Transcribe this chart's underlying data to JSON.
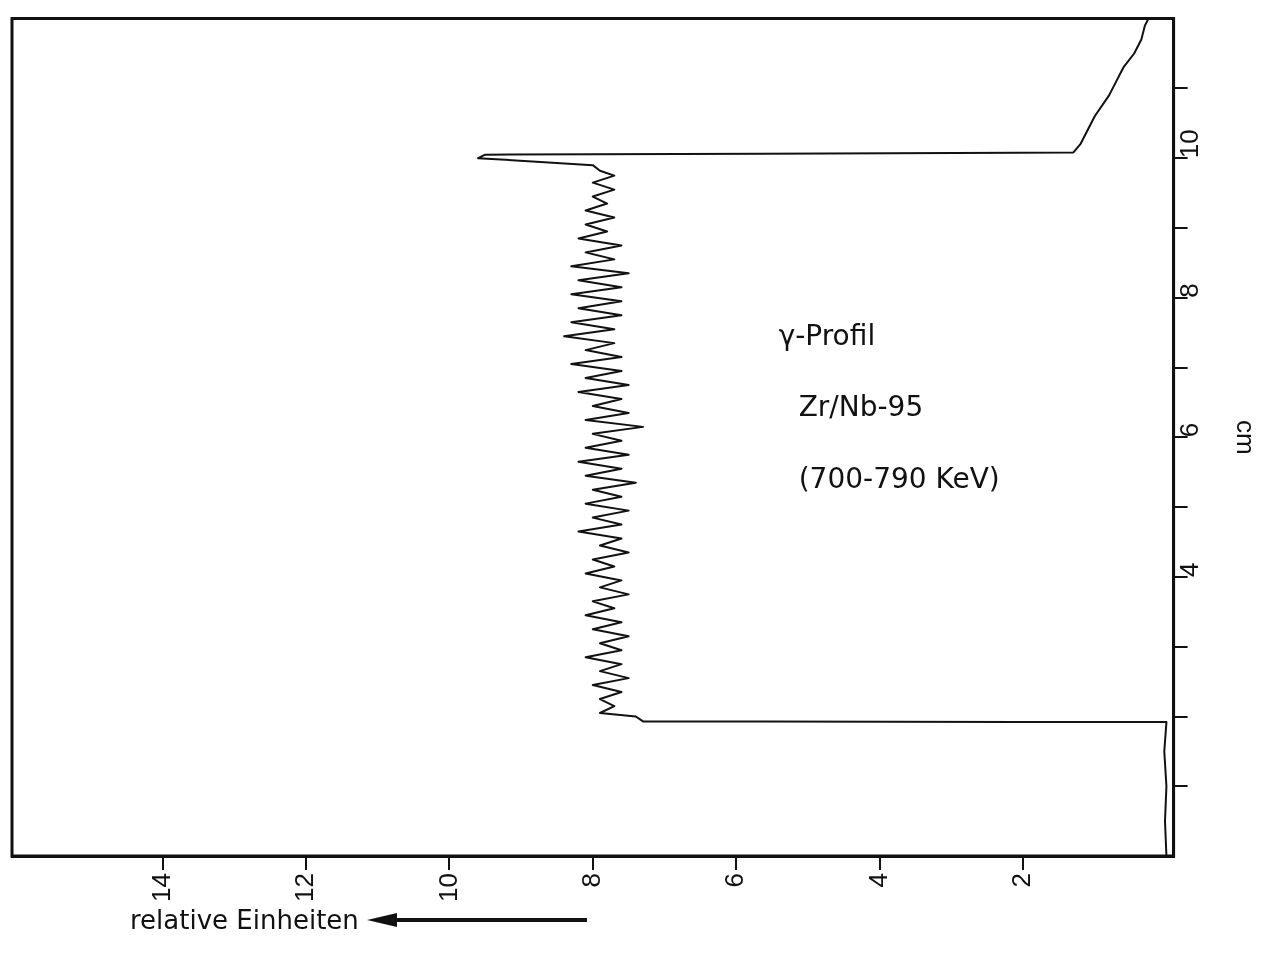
{
  "chart_data": {
    "type": "line",
    "xlabel": "relative Einheiten",
    "ylabel": "cm",
    "annotations": [
      "γ-Profil",
      "Zr/Nb-95",
      "(700-790 KeV)"
    ],
    "x": [
      0.0,
      0.02,
      0.0,
      0.03,
      0.0,
      7.3,
      7.4,
      7.9,
      7.7,
      7.9,
      7.6,
      8.0,
      7.5,
      7.9,
      7.6,
      8.1,
      7.6,
      7.9,
      7.5,
      8.0,
      7.6,
      8.1,
      7.7,
      8.0,
      7.5,
      7.9,
      7.6,
      8.1,
      7.7,
      8.0,
      7.5,
      7.9,
      7.6,
      8.2,
      7.6,
      8.0,
      7.5,
      8.1,
      7.6,
      8.0,
      7.4,
      8.1,
      7.6,
      8.2,
      7.5,
      8.1,
      7.6,
      8.0,
      7.3,
      8.1,
      7.5,
      8.0,
      7.6,
      8.2,
      7.5,
      8.1,
      7.6,
      8.3,
      7.6,
      8.1,
      7.7,
      8.4,
      7.7,
      8.3,
      7.6,
      8.2,
      7.6,
      8.3,
      7.6,
      8.2,
      7.5,
      8.3,
      7.7,
      8.1,
      7.6,
      8.2,
      7.8,
      8.1,
      7.7,
      8.1,
      7.8,
      8.0,
      7.7,
      8.0,
      7.7,
      7.9,
      8.0,
      9.6,
      9.5,
      1.3,
      1.2,
      1.1,
      1.0,
      0.8,
      0.7,
      0.6,
      0.45,
      0.35,
      0.3,
      0.25
    ],
    "series": [
      {
        "color": "#111111",
        "values": [
          0.0,
          0.5,
          1.0,
          1.5,
          1.92,
          1.93,
          2.0,
          2.05,
          2.15,
          2.25,
          2.35,
          2.45,
          2.55,
          2.65,
          2.75,
          2.85,
          2.95,
          3.05,
          3.15,
          3.25,
          3.35,
          3.45,
          3.55,
          3.65,
          3.75,
          3.85,
          3.95,
          4.05,
          4.15,
          4.25,
          4.35,
          4.45,
          4.55,
          4.65,
          4.75,
          4.85,
          4.95,
          5.05,
          5.15,
          5.25,
          5.35,
          5.45,
          5.55,
          5.65,
          5.75,
          5.85,
          5.95,
          6.05,
          6.15,
          6.25,
          6.35,
          6.45,
          6.55,
          6.65,
          6.75,
          6.85,
          6.95,
          7.05,
          7.15,
          7.25,
          7.35,
          7.45,
          7.55,
          7.65,
          7.75,
          7.85,
          7.95,
          8.05,
          8.15,
          8.25,
          8.35,
          8.45,
          8.55,
          8.65,
          8.75,
          8.85,
          8.95,
          9.05,
          9.15,
          9.25,
          9.35,
          9.45,
          9.55,
          9.65,
          9.75,
          9.82,
          9.9,
          10.0,
          10.05,
          10.08,
          10.2,
          10.4,
          10.6,
          10.9,
          11.1,
          11.3,
          11.5,
          11.7,
          11.9,
          12.0
        ]
      }
    ],
    "xlim": [
      16.1,
      -0.1
    ],
    "xticks": [
      14,
      12,
      10,
      8,
      6,
      4,
      2
    ],
    "ylim": [
      0,
      12
    ],
    "yticks": [
      {
        "value": 1,
        "label": null
      },
      {
        "value": 2,
        "label": null
      },
      {
        "value": 3,
        "label": null
      },
      4,
      {
        "value": 5,
        "label": null
      },
      6,
      {
        "value": 7,
        "label": null
      },
      8,
      {
        "value": 9,
        "label": null
      },
      10,
      {
        "value": 11,
        "label": null
      }
    ],
    "grid": false,
    "legend": false,
    "marker": "none",
    "line_style": "solid"
  }
}
